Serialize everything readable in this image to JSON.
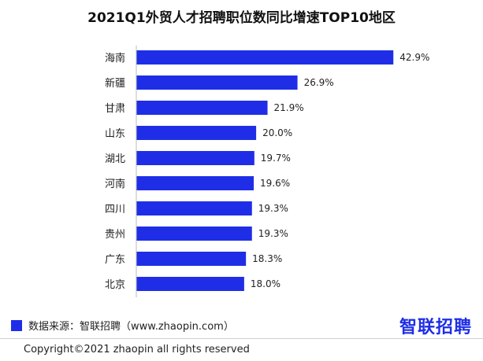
{
  "chart_data": {
    "type": "bar",
    "orientation": "horizontal",
    "title": "2021Q1外贸人才招聘职位数同比增速TOP10地区",
    "categories": [
      "海南",
      "新疆",
      "甘肃",
      "山东",
      "湖北",
      "河南",
      "四川",
      "贵州",
      "广东",
      "北京"
    ],
    "values": [
      42.9,
      26.9,
      21.9,
      20.0,
      19.7,
      19.6,
      19.3,
      19.3,
      18.3,
      18.0
    ],
    "value_labels": [
      "42.9%",
      "26.9%",
      "21.9%",
      "20.0%",
      "19.7%",
      "19.6%",
      "19.3%",
      "19.3%",
      "18.3%",
      "18.0%"
    ],
    "bar_color": "#1f2ee6",
    "xlim": [
      0,
      43
    ],
    "grid": false
  },
  "source": "数据来源：智联招聘（www.zhaopin.com）",
  "brand": "智联招聘",
  "copyright": "Copyright©2021 zhaopin all rights reserved"
}
